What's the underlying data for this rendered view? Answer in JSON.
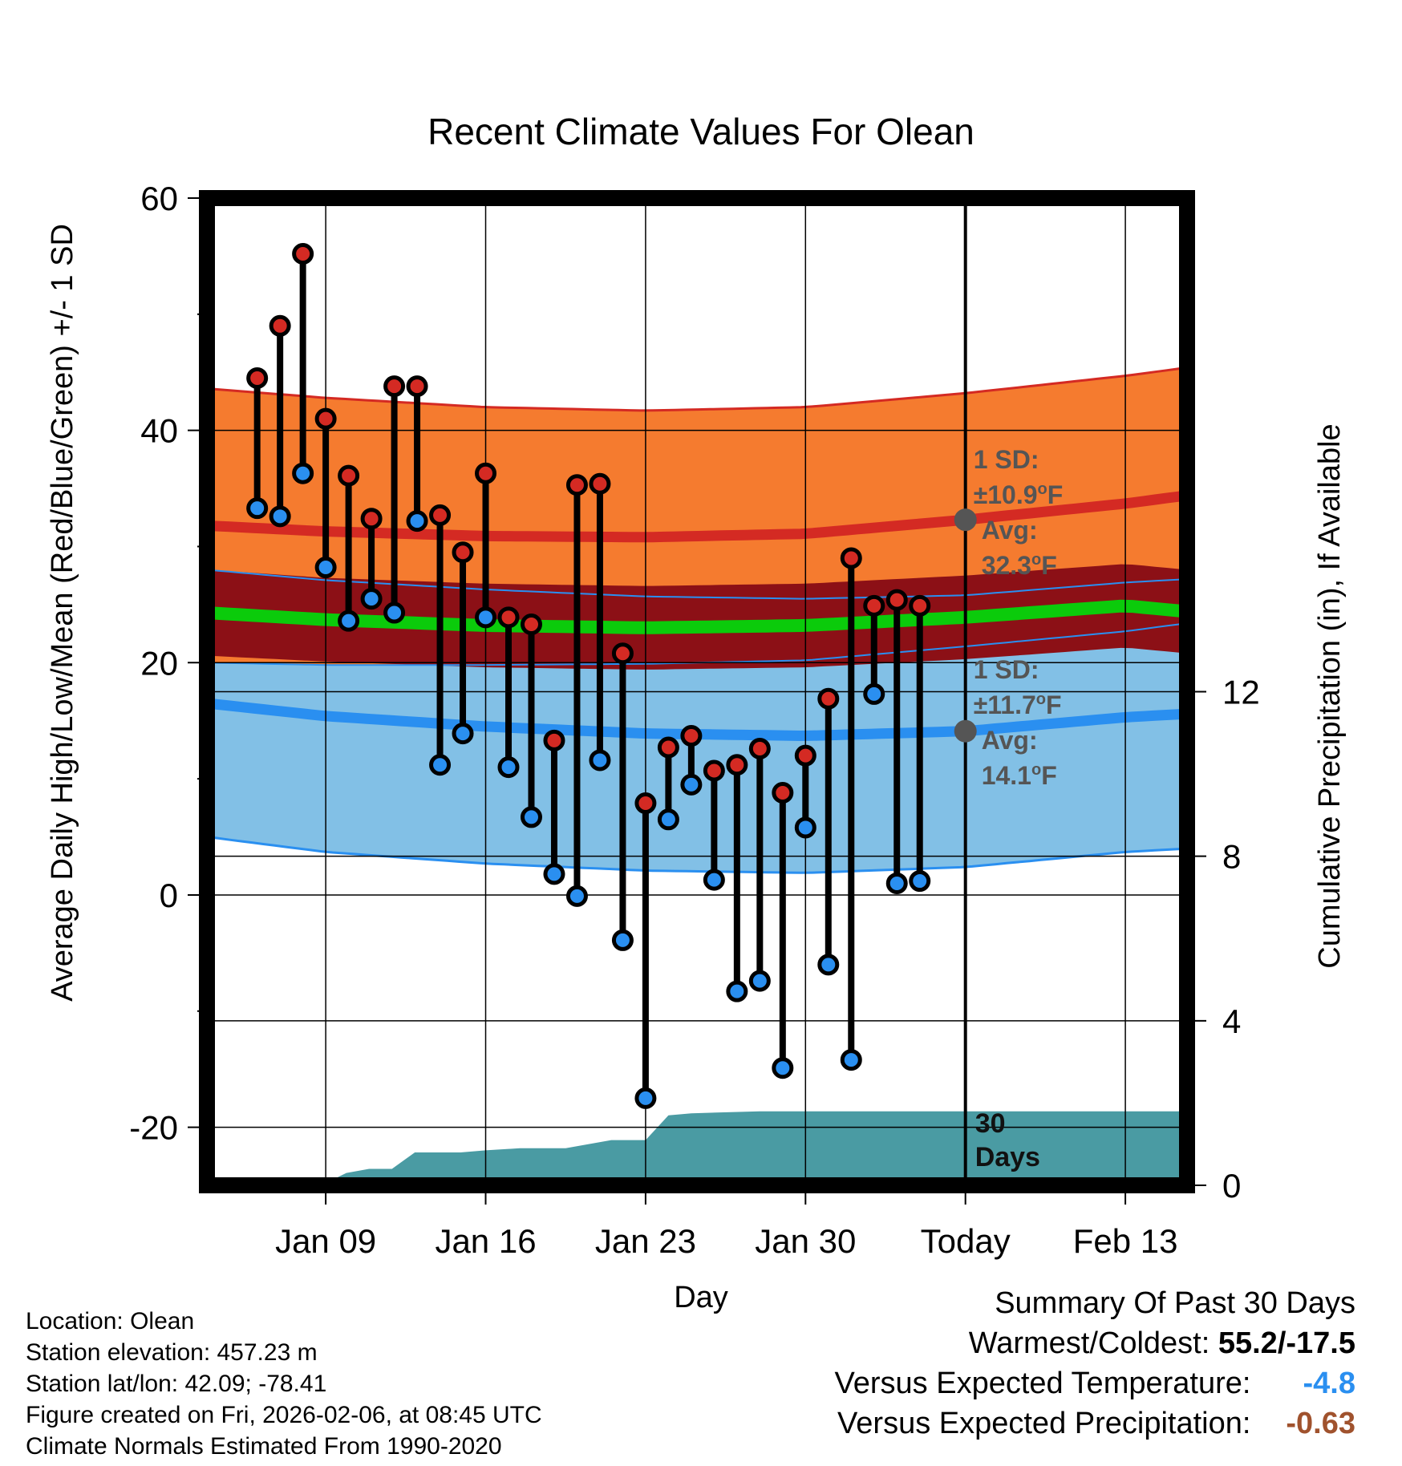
{
  "colors": {
    "high_band": "#F57B2F",
    "high_line": "#D42A23",
    "mean_band": "#8C1016",
    "mean_line": "#0BCB0B",
    "low_band": "#82C0E6",
    "low_line": "#2A8FF0",
    "precip": "#4A9BA3",
    "high_dot": "#D42A23",
    "low_dot": "#2A8FF0",
    "avg_marker": "#555555",
    "blue_value": "#2A8FF0",
    "brown_value": "#A0522D"
  },
  "chart_data": {
    "type": "range-dot",
    "title": "Recent Climate Values For Olean",
    "xlabel": "Day",
    "ylabel_left": "Average Daily High/Low/Mean (Red/Blue/Green) +/- 1 SD",
    "ylabel_right": "Cumulative Precipitation (in), If Available",
    "x_range_days": [
      -33.2,
      9.7
    ],
    "ylim": [
      -25,
      60
    ],
    "y_ticks": [
      -20,
      0,
      20,
      40,
      60
    ],
    "y_minor_ticks": [
      -10,
      10,
      30,
      50
    ],
    "y2lim": [
      0,
      24
    ],
    "y2_ticks": [
      0,
      4,
      8,
      12
    ],
    "x_ticks": [
      {
        "day": -28,
        "label": "Jan 09"
      },
      {
        "day": -21,
        "label": "Jan 16"
      },
      {
        "day": -14,
        "label": "Jan 23"
      },
      {
        "day": -7,
        "label": "Jan 30"
      },
      {
        "day": 0,
        "label": "Today"
      },
      {
        "day": 7,
        "label": "Feb 13"
      }
    ],
    "today_line_day": 0,
    "grid": true,
    "normals": {
      "days": [
        -33.2,
        -28,
        -21,
        -14,
        -7,
        0,
        7,
        9.7
      ],
      "high_avg": [
        31.8,
        31.3,
        30.9,
        30.8,
        31.1,
        32.3,
        33.7,
        34.4
      ],
      "high_sd": [
        11.8,
        11.5,
        11.1,
        10.9,
        10.9,
        10.9,
        11.0,
        11.0
      ],
      "mean_avg": [
        24.3,
        23.7,
        23.2,
        23.0,
        23.2,
        23.9,
        24.9,
        24.4
      ],
      "mean_sd_band": [
        3.7,
        3.6,
        3.6,
        3.6,
        3.6,
        3.6,
        3.6,
        3.6
      ],
      "low_avg": [
        16.5,
        15.4,
        14.5,
        13.9,
        13.7,
        14.1,
        15.3,
        15.6
      ],
      "low_sd": [
        11.5,
        11.7,
        11.8,
        11.8,
        11.8,
        11.7,
        11.6,
        11.6
      ]
    },
    "series": [
      {
        "name": "Daily High",
        "values": [
          44.5,
          49.0,
          55.2,
          41.0,
          36.1,
          32.4,
          43.8,
          43.8,
          32.7,
          29.5,
          36.3,
          23.9,
          23.3,
          13.3,
          35.3,
          35.4,
          20.8,
          7.9,
          12.7,
          13.7,
          10.7,
          11.2,
          12.6,
          8.8,
          12.0,
          16.9,
          29.0,
          24.9,
          25.4,
          24.9
        ]
      },
      {
        "name": "Daily Low",
        "values": [
          33.3,
          32.6,
          36.3,
          28.2,
          23.6,
          25.5,
          24.3,
          32.2,
          11.2,
          13.9,
          23.9,
          11.0,
          6.7,
          1.8,
          -0.1,
          11.6,
          -3.9,
          -17.5,
          6.5,
          9.5,
          1.3,
          -8.3,
          -7.4,
          -14.9,
          5.8,
          -6.0,
          -14.2,
          17.3,
          1.0,
          1.2
        ]
      }
    ],
    "series_days": [
      -31,
      -30,
      -29,
      -28,
      -27,
      -26,
      -25,
      -24,
      -23,
      -22,
      -21,
      -20,
      -19,
      -18,
      -17,
      -16,
      -15,
      -14,
      -13,
      -12,
      -11,
      -10,
      -9,
      -8,
      -7,
      -6,
      -5,
      -4,
      -3,
      -2
    ],
    "precip_cumulative": {
      "days": [
        -33.2,
        -28.2,
        -27.1,
        -26.1,
        -25.1,
        -24.1,
        -22.1,
        -21.0,
        -19.5,
        -17.5,
        -15.5,
        -14.0,
        -13.0,
        -12.0,
        -9.0,
        -6.0,
        -2.0,
        0,
        9.7
      ],
      "values": [
        0,
        0,
        0.3,
        0.4,
        0.4,
        0.8,
        0.8,
        0.85,
        0.9,
        0.9,
        1.1,
        1.1,
        1.7,
        1.75,
        1.8,
        1.8,
        1.8,
        1.8,
        1.8
      ]
    },
    "annotations": {
      "high": {
        "line1": "1 SD:",
        "sd": "±10.9",
        "avg_label": "Avg:",
        "avg": "32.3",
        "unit": "F",
        "avg_value": 32.3
      },
      "low": {
        "line1": "1 SD:",
        "sd": "±11.7",
        "avg_label": "Avg:",
        "avg": "14.1",
        "unit": "F",
        "avg_value": 14.1
      },
      "degree_symbol": "o",
      "days_top": "30",
      "days_bottom": "Days"
    }
  },
  "footer": {
    "location": "Location: Olean",
    "elevation": "Station elevation: 457.23 m",
    "latlon": "Station lat/lon: 42.09; -78.41",
    "created": "Figure created on Fri, 2026-02-06, at 08:45 UTC",
    "normals": "Climate Normals Estimated From 1990-2020"
  },
  "summary": {
    "heading": "Summary Of Past 30 Days",
    "warm_cold_label": "Warmest/Coldest:",
    "warm_cold_value": "55.2/-17.5",
    "temp_label": "Versus Expected Temperature:",
    "temp_value": "-4.8",
    "precip_label": "Versus Expected Precipitation:",
    "precip_value": "-0.63"
  }
}
